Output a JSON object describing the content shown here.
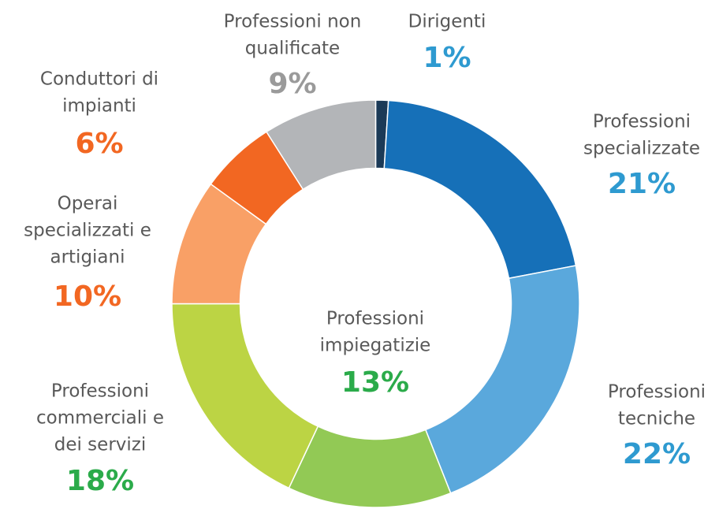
{
  "chart_data": {
    "type": "donut",
    "categories": [
      [
        "Dirigenti"
      ],
      [
        "Professioni",
        "specializzate"
      ],
      [
        "Professioni",
        "tecniche"
      ],
      [
        "Professioni",
        "impiegatizie"
      ],
      [
        "Professioni",
        "commerciali e",
        "dei servizi"
      ],
      [
        "Operai",
        "specializzati e",
        "artigiani"
      ],
      [
        "Conduttori di",
        "impianti"
      ],
      [
        "Professioni non",
        "qualificate"
      ]
    ],
    "values": [
      1,
      21,
      22,
      13,
      18,
      10,
      6,
      9
    ],
    "value_labels": [
      "1%",
      "21%",
      "22%",
      "13%",
      "18%",
      "10%",
      "6%",
      "9%"
    ],
    "colors": [
      "#1b3a57",
      "#1670b8",
      "#5aa8dc",
      "#92c955",
      "#bcd444",
      "#f9a066",
      "#f26722",
      "#b3b5b8"
    ],
    "label_colors": [
      "#2e9ad0",
      "#2e9ad0",
      "#2e9ad0",
      "#2bab4a",
      "#2bab4a",
      "#f26722",
      "#f26722",
      "#9a9a9a"
    ]
  }
}
